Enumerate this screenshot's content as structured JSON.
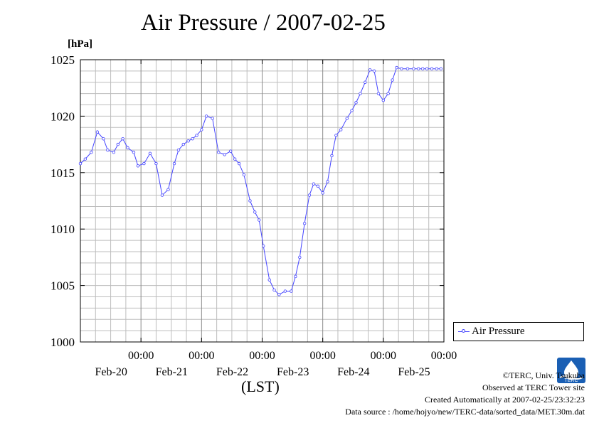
{
  "chart_data": {
    "type": "line",
    "title": "Air Pressure / 2007-02-25",
    "ylabel": "[hPa]",
    "xlabel": "(LST)",
    "ylim": [
      1000,
      1025
    ],
    "yticks": [
      1000,
      1005,
      1010,
      1015,
      1020,
      1025
    ],
    "xlim": [
      -1.0,
      5.0
    ],
    "xticks": [
      {
        "x": 0,
        "time": "00:00",
        "date": "Feb-20"
      },
      {
        "x": 1,
        "time": "00:00",
        "date": "Feb-21"
      },
      {
        "x": 2,
        "time": "00:00",
        "date": "Feb-22"
      },
      {
        "x": 3,
        "time": "00:00",
        "date": "Feb-23"
      },
      {
        "x": 4,
        "time": "00:00",
        "date": "Feb-24"
      },
      {
        "x": 5,
        "time": "00:00",
        "date": "Feb-25"
      }
    ],
    "grid": true,
    "legend": "right",
    "series": [
      {
        "name": "Air Pressure",
        "color": "#4444ff",
        "x": [
          -1.0,
          -0.92,
          -0.82,
          -0.72,
          -0.62,
          -0.55,
          -0.45,
          -0.38,
          -0.3,
          -0.22,
          -0.12,
          -0.05,
          0.05,
          0.15,
          0.25,
          0.35,
          0.45,
          0.55,
          0.62,
          0.7,
          0.78,
          0.85,
          0.92,
          1.0,
          1.08,
          1.18,
          1.28,
          1.38,
          1.48,
          1.55,
          1.62,
          1.7,
          1.8,
          1.88,
          1.95,
          2.02,
          2.12,
          2.2,
          2.28,
          2.38,
          2.48,
          2.55,
          2.62,
          2.7,
          2.78,
          2.85,
          2.92,
          3.0,
          3.08,
          3.15,
          3.22,
          3.3,
          3.4,
          3.48,
          3.55,
          3.62,
          3.7,
          3.78,
          3.85,
          3.92,
          4.0,
          4.08,
          4.15,
          4.22,
          4.3,
          4.4,
          4.5,
          4.58,
          4.65,
          4.72,
          4.8,
          4.88,
          4.95,
          5.02,
          5.1,
          5.18,
          5.25,
          5.32,
          5.38,
          5.42,
          5.46,
          5.5
        ],
        "values": [
          1015.8,
          1016.2,
          1016.8,
          1018.6,
          1018.0,
          1017.0,
          1016.8,
          1017.5,
          1018.0,
          1017.2,
          1016.8,
          1015.6,
          1015.8,
          1016.7,
          1015.8,
          1013.0,
          1013.5,
          1015.8,
          1017.0,
          1017.5,
          1017.8,
          1018.0,
          1018.3,
          1018.8,
          1020.0,
          1019.8,
          1016.8,
          1016.6,
          1016.9,
          1016.2,
          1015.8,
          1014.8,
          1012.5,
          1011.5,
          1010.8,
          1008.5,
          1005.5,
          1004.6,
          1004.2,
          1004.5,
          1004.5,
          1005.8,
          1007.5,
          1010.5,
          1013.0,
          1014.0,
          1013.8,
          1013.2,
          1014.2,
          1016.5,
          1018.3,
          1018.8,
          1019.8,
          1020.5,
          1021.2,
          1022.0,
          1023.0,
          1024.1,
          1024.0,
          1022.0,
          1021.4,
          1022.0,
          1023.2,
          1024.3,
          1024.2,
          1024.2,
          1024.2,
          1024.2,
          1024.2,
          1024.2,
          1024.2,
          1024.2,
          1024.2,
          1024.2,
          1024.2,
          1024.2,
          1024.2,
          1024.2,
          1024.2,
          1024.2,
          1024.2,
          1024.2
        ]
      }
    ]
  },
  "credits": {
    "copyright": "©TERC, Univ. Tsukuba",
    "observed": "Observed at TERC Tower site",
    "created": "Created Automatically at 2007-02-25/23:32:23",
    "source": "Data source : /home/hojyo/new/TERC-data/sorted_data/MET.30m.dat",
    "logo_text": "TERC",
    "logo_color": "#1a5fb4"
  }
}
